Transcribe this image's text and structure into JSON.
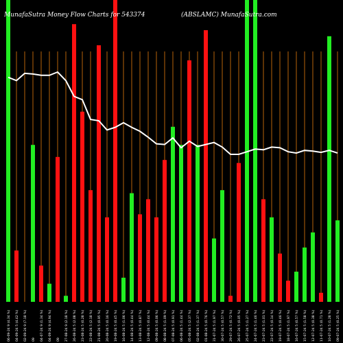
{
  "chart_data": {
    "type": "bar",
    "title_left": "MunafaSutra  Money Flow  Charts for 543374",
    "title_right": "(ABSLAMC) MunafaSutra.com",
    "colors": {
      "up": "#22ee22",
      "down": "#ff1111",
      "gridline": "#b8650a",
      "line": "#ffffff",
      "background": "#000000"
    },
    "series": [
      {
        "type": "bar",
        "name": "",
        "values": [
          100,
          17,
          0,
          52,
          12,
          6,
          48,
          2,
          92,
          63,
          37,
          85,
          28,
          100,
          8,
          36,
          29,
          34,
          28,
          47,
          58,
          52,
          80,
          52,
          90,
          21,
          37,
          2,
          46,
          100,
          100,
          34,
          28,
          16,
          7,
          10,
          18,
          23,
          3,
          88,
          27
        ]
      },
      {
        "type": "line",
        "name": "",
        "values": [
          652,
          647,
          658,
          657,
          655,
          655,
          660,
          647,
          623,
          618,
          588,
          586,
          572,
          576,
          583,
          576,
          570,
          561,
          551,
          550,
          560,
          545,
          555,
          547,
          550,
          553,
          546,
          535,
          535,
          539,
          543,
          542,
          546,
          545,
          539,
          537,
          541,
          540,
          538,
          541,
          537
        ]
      }
    ],
    "bar_colors": [
      "up",
      "down",
      "down",
      "up",
      "down",
      "up",
      "down",
      "up",
      "down",
      "down",
      "down",
      "down",
      "down",
      "down",
      "up",
      "up",
      "down",
      "down",
      "down",
      "down",
      "up",
      "up",
      "down",
      "up",
      "down",
      "up",
      "up",
      "down",
      "down",
      "up",
      "up",
      "down",
      "up",
      "down",
      "down",
      "up",
      "up",
      "up",
      "down",
      "up",
      "up"
    ],
    "x_tick_labels": [
      "06-09-24 9 (4.34 %)",
      "04-09-24 5 (4.42 %)",
      "02-09-24 9 (7.18 %)",
      "09",
      "04-07-24 9 (1.34 %)",
      "04-09-24 9 (4.94 %)",
      "09",
      "27-08-24 9 (2.18 %)",
      "26-08-24 5 (2.08 %)",
      "23-08-24 5 (0.28 %)",
      "22-08-24 5 (2.18 %)",
      "21-08-24 5 (0.95 %)",
      "20-08-24 5 (0.16 %)",
      "19-08-24 5 (0.45 %)",
      "16-08-24 5 (1.06 %)",
      "14-08-24 5 (0.44 %)",
      "13-08-24 5 (0.87 %)",
      "12-08-24 5 (0.44 %)",
      "09-08-24 5 (0.06 %)",
      "08-08-24 5 (1.09 %)",
      "07-08-24 5 (0.91 %)",
      "06-08-24 5 (1.44 %)",
      "05-08-24 5 (2.37 %)",
      "02-08-24 5 (1.37 %)",
      "01-08-24 5 (0.76 %)",
      "31-07-24 5 (1.97 %)",
      "30-07-24 5 (0.57 %)",
      "29-07-24 5 (0.72 %)",
      "26-07-24 5 (0.05 %)",
      "25-07-24 5 (1.27 %)",
      "24-07-24 5 (1.46 %)",
      "23-07-24 5 (1.01 %)",
      "22-07-24 5 (0.14 %)",
      "19-07-24 5 (0.46 %)",
      "18-07-24 5 (1.97 %)",
      "16-07-24 5 (0.57 %)",
      "15-07-24 5 (1.58 %)",
      "12-07-24 5 (0.38 %)",
      "11-07-24 5 (0.71 %)",
      "10-07-24 5 (1.28 %)",
      "09-07-24 5 (0.25 %)"
    ],
    "grid": true,
    "legend": "none"
  }
}
